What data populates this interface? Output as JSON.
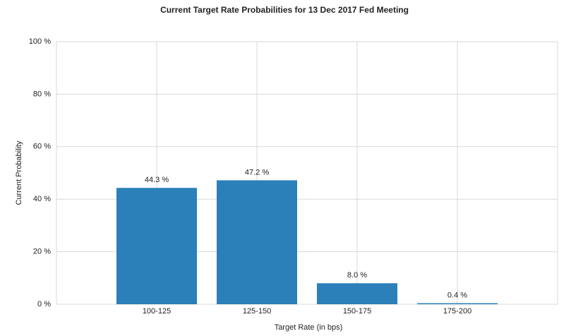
{
  "chart_data": {
    "type": "bar",
    "title": "Current Target Rate Probabilities for 13 Dec 2017 Fed Meeting",
    "x_label": "Target Rate (in bps)",
    "y_label": "Current Probability",
    "categories": [
      "100-125",
      "125-150",
      "150-175",
      "175-200"
    ],
    "values": [
      44.3,
      47.2,
      8.0,
      0.4
    ],
    "value_labels": [
      "44.3 %",
      "47.2 %",
      "8.0 %",
      "0.4 %"
    ],
    "color": "#2b80b9",
    "ylim": [
      0,
      100
    ],
    "yticks": [
      {
        "value": 0,
        "label": "0 %"
      },
      {
        "value": 20,
        "label": "20 %"
      },
      {
        "value": 40,
        "label": "40 %"
      },
      {
        "value": 60,
        "label": "60 %"
      },
      {
        "value": 80,
        "label": "80 %"
      },
      {
        "value": 100,
        "label": "100 %"
      }
    ],
    "grid": true
  }
}
